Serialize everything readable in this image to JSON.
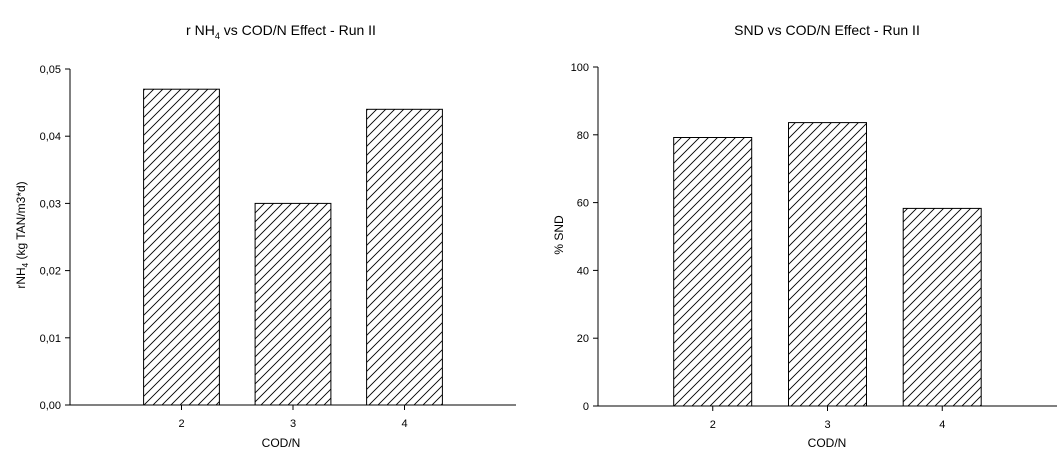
{
  "chart_data": [
    {
      "type": "bar",
      "title_main": "r NH",
      "title_sub": "4",
      "title_rest": " vs COD/N Effect - Run II",
      "xlabel": "COD/N",
      "ylabel_main": "rNH",
      "ylabel_sub": "4",
      "ylabel_rest": " (kg TAN/m3*d)",
      "categories": [
        "2",
        "3",
        "4"
      ],
      "values": [
        0.047,
        0.03,
        0.044
      ],
      "ylim": [
        0,
        0.05
      ],
      "yticks": [
        0.0,
        0.01,
        0.02,
        0.03,
        0.04,
        0.05
      ],
      "ytick_labels": [
        "0,00",
        "0,01",
        "0,02",
        "0,03",
        "0,04",
        "0,05"
      ],
      "bar_fill": "diagonal-hatch",
      "grid": false,
      "legend": "none"
    },
    {
      "type": "bar",
      "title_main": "SND vs COD/N Effect - Run II",
      "title_sub": "",
      "title_rest": "",
      "xlabel": "COD/N",
      "ylabel_main": "% SND",
      "ylabel_sub": "",
      "ylabel_rest": "",
      "categories": [
        "2",
        "3",
        "4"
      ],
      "values": [
        79.2,
        83.6,
        58.3
      ],
      "ylim": [
        0,
        100
      ],
      "yticks": [
        0,
        20,
        40,
        60,
        80,
        100
      ],
      "ytick_labels": [
        "0",
        "20",
        "40",
        "60",
        "80",
        "100"
      ],
      "bar_fill": "diagonal-hatch",
      "grid": false,
      "legend": "none"
    }
  ]
}
